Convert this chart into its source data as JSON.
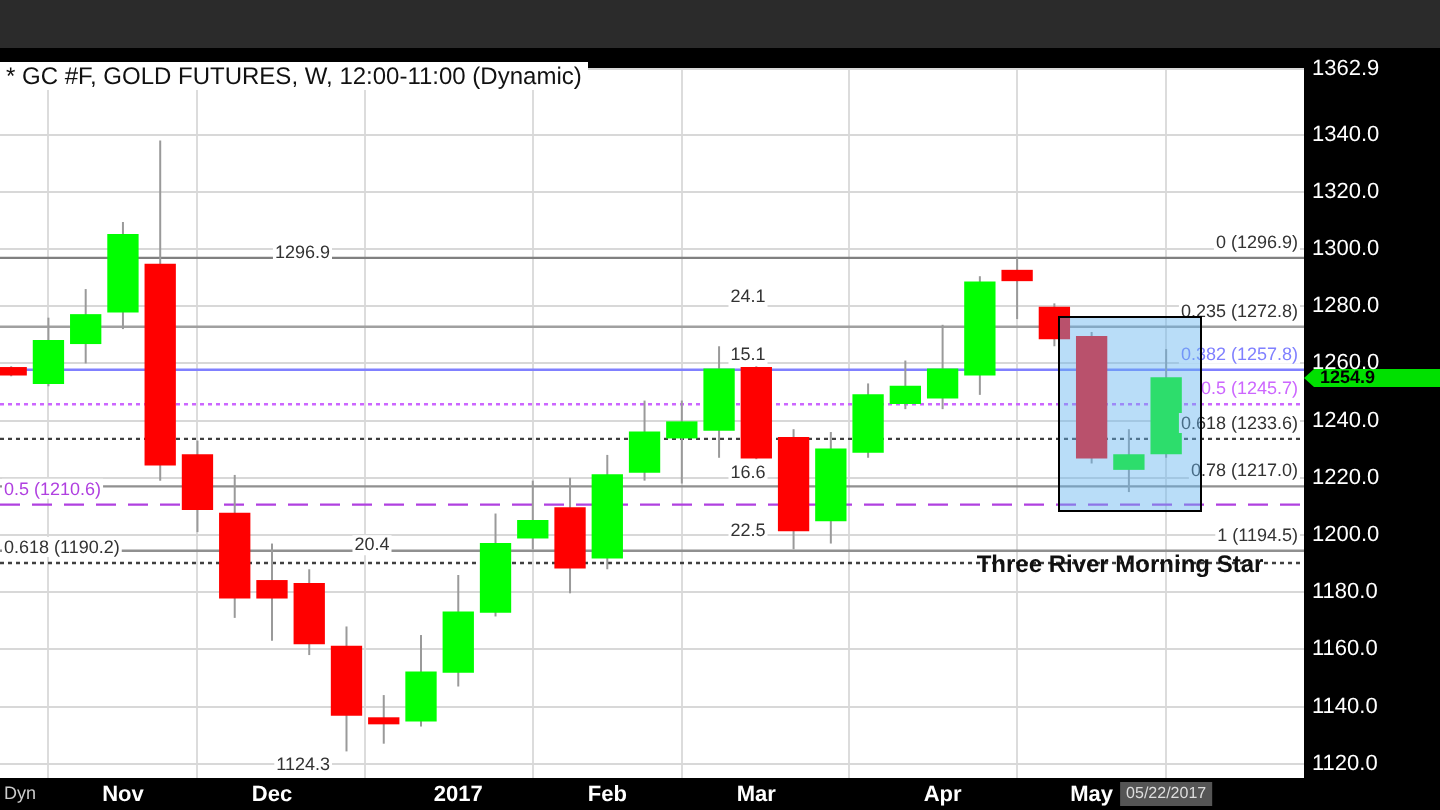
{
  "chart_data": {
    "type": "candlestick",
    "title": "* GC #F, GOLD FUTURES, W, 12:00-11:00 (Dynamic)",
    "categories": [
      null,
      null,
      null,
      "Nov",
      null,
      null,
      null,
      "Dec",
      null,
      null,
      null,
      null,
      "2017",
      null,
      null,
      null,
      "Feb",
      null,
      null,
      null,
      "Mar",
      null,
      null,
      null,
      null,
      "Apr",
      null,
      null,
      null,
      "May",
      null,
      null
    ],
    "ohlc": [
      [
        1258.5,
        1259,
        1255.5,
        1256
      ],
      [
        1253,
        1276,
        1252,
        1268
      ],
      [
        1267,
        1286,
        1260,
        1277
      ],
      [
        1278,
        1309.5,
        1272,
        1305
      ],
      [
        1294.6,
        1338,
        1219,
        1224.5
      ],
      [
        1228,
        1233,
        1201,
        1209
      ],
      [
        1207.5,
        1221,
        1171,
        1178
      ],
      [
        1184,
        1197,
        1163,
        1178
      ],
      [
        1183,
        1188,
        1158,
        1162
      ],
      [
        1161,
        1168,
        1124.3,
        1137
      ],
      [
        1136,
        1144,
        1127,
        1134
      ],
      [
        1135,
        1165,
        1133,
        1152
      ],
      [
        1152,
        1186,
        1147,
        1173
      ],
      [
        1173,
        1207.5,
        1171.5,
        1197
      ],
      [
        1199,
        1219,
        1195,
        1205
      ],
      [
        1209.5,
        1220,
        1179.6,
        1188.5
      ],
      [
        1192,
        1228,
        1188,
        1221
      ],
      [
        1222,
        1247,
        1219,
        1236
      ],
      [
        1234,
        1247,
        1218,
        1239.5
      ],
      [
        1236.7,
        1266,
        1227,
        1258
      ],
      [
        1258.5,
        1259,
        1226.5,
        1227
      ],
      [
        1234,
        1237,
        1195,
        1201.5
      ],
      [
        1205,
        1236,
        1197,
        1230
      ],
      [
        1229,
        1253,
        1227,
        1249
      ],
      [
        1246,
        1261,
        1244,
        1252
      ],
      [
        1248,
        1273.5,
        1244,
        1258
      ],
      [
        1256,
        1290.5,
        1249,
        1288.4
      ],
      [
        1292.5,
        1296.9,
        1275.5,
        1289
      ],
      [
        1279.6,
        1281,
        1266,
        1268.7
      ],
      [
        1269.4,
        1271,
        1225,
        1227
      ],
      [
        1223,
        1237,
        1215,
        1228
      ],
      [
        1228.5,
        1265,
        1227,
        1254.9
      ]
    ],
    "colors": [
      "#ff0000",
      "#00ff00",
      "#00ff00",
      "#00ff00",
      "#ff0000",
      "#ff0000",
      "#ff0000",
      "#ff0000",
      "#ff0000",
      "#ff0000",
      "#ff0000",
      "#00ff00",
      "#00ff00",
      "#00ff00",
      "#00ff00",
      "#ff0000",
      "#00ff00",
      "#00ff00",
      "#00ff00",
      "#00ff00",
      "#ff0000",
      "#ff0000",
      "#00ff00",
      "#00ff00",
      "#00ff00",
      "#00ff00",
      "#00ff00",
      "#ff0000",
      "#ff0000",
      "#ff0000",
      "#00ff00",
      "#00ff00"
    ],
    "ylim": [
      1115,
      1362.9
    ],
    "yticks": [
      {
        "value": 1120,
        "label": "1120.0"
      },
      {
        "value": 1140,
        "label": "1140.0"
      },
      {
        "value": 1160,
        "label": "1160.0"
      },
      {
        "value": 1180,
        "label": "1180.0"
      },
      {
        "value": 1200,
        "label": "1200.0"
      },
      {
        "value": 1220,
        "label": "1220.0"
      },
      {
        "value": 1240,
        "label": "1240.0"
      },
      {
        "value": 1260,
        "label": "1260.0"
      },
      {
        "value": 1280,
        "label": "1280.0"
      },
      {
        "value": 1300,
        "label": "1300.0"
      },
      {
        "value": 1320,
        "label": "1320.0"
      },
      {
        "value": 1340,
        "label": "1340.0"
      },
      {
        "value": 1362.9,
        "label": "1362.9"
      }
    ],
    "grid": true,
    "legend": false,
    "ref_lines": [
      {
        "axis": "y",
        "value": 1296.9,
        "label": "0 (1296.9)",
        "color": "#808080",
        "line_style": "solid"
      },
      {
        "axis": "y",
        "value": 1272.8,
        "label": "0.235 (1272.8)",
        "color": "#a0a0a0",
        "line_style": "solid"
      },
      {
        "axis": "y",
        "value": 1257.8,
        "label": "0.382 (1257.8)",
        "color": "#8080ff",
        "line_style": "solid"
      },
      {
        "axis": "y",
        "value": 1245.7,
        "label": "0.5 (1245.7)",
        "color": "#cc66ff",
        "line_style": "dotted"
      },
      {
        "axis": "y",
        "value": 1233.6,
        "label": "0.618 (1233.6)",
        "color": "#404040",
        "line_style": "dotted"
      },
      {
        "axis": "y",
        "value": 1217.0,
        "label": "0.78 (1217.0)",
        "color": "#909090",
        "line_style": "solid"
      },
      {
        "axis": "y",
        "value": 1210.6,
        "label": "0.5 (1210.6)",
        "color": "#b040e0",
        "line_style": "dashed"
      },
      {
        "axis": "y",
        "value": 1194.5,
        "label": "1 (1194.5)",
        "color": "#909090",
        "line_style": "solid"
      },
      {
        "axis": "y",
        "value": 1190.2,
        "label": "0.618 (1190.2)",
        "color": "#404040",
        "line_style": "dotted"
      }
    ],
    "annotations": [
      "1296.9",
      "24.1",
      "15.1",
      "16.6",
      "22.5",
      "20.4",
      "1124.3",
      "Three River Morning Star",
      "1254.9",
      "05/22/2017",
      "Dyn"
    ]
  }
}
